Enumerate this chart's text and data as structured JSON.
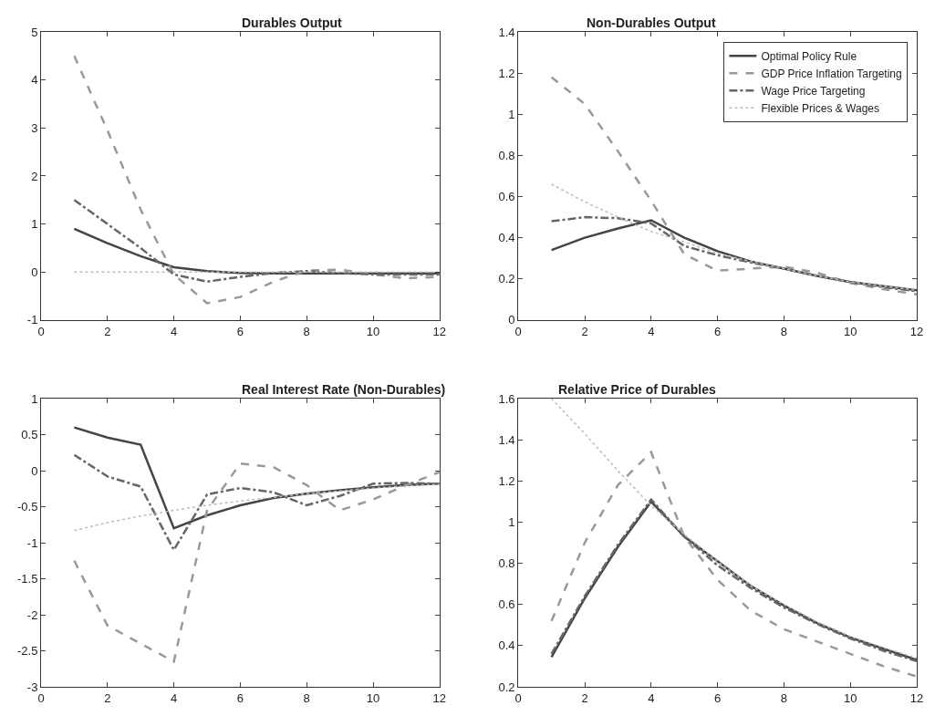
{
  "chart_data": [
    {
      "type": "line",
      "title": "Durables Output",
      "x": [
        1,
        2,
        3,
        4,
        5,
        6,
        7,
        8,
        9,
        10,
        11,
        12
      ],
      "xlim": [
        0,
        12
      ],
      "xticks": [
        0,
        2,
        4,
        6,
        8,
        10,
        12
      ],
      "ylim": [
        -1,
        5
      ],
      "yticks": [
        -1,
        0,
        1,
        2,
        3,
        4,
        5
      ],
      "grid": false,
      "legend": false,
      "marker": "none",
      "series": [
        {
          "color": "#444444",
          "line_style": "solid",
          "values": [
            0.9,
            0.6,
            0.33,
            0.1,
            0.02,
            -0.02,
            -0.03,
            -0.03,
            -0.03,
            -0.03,
            -0.03,
            -0.03
          ]
        },
        {
          "color": "#999999",
          "line_style": "dashed",
          "values": [
            4.5,
            2.95,
            1.3,
            -0.05,
            -0.65,
            -0.52,
            -0.2,
            0.03,
            0.05,
            -0.05,
            -0.13,
            -0.1
          ]
        },
        {
          "color": "#666666",
          "line_style": "dashdot",
          "values": [
            1.5,
            1.0,
            0.5,
            -0.05,
            -0.2,
            -0.1,
            -0.02,
            0.02,
            -0.02,
            -0.05,
            -0.05,
            -0.05
          ]
        },
        {
          "color": "#bbbbbb",
          "line_style": "dotted",
          "values": [
            0,
            0,
            0,
            0,
            0,
            0,
            0,
            0,
            0,
            0,
            0,
            0
          ]
        }
      ]
    },
    {
      "type": "line",
      "title": "Non-Durables Output",
      "x": [
        1,
        2,
        3,
        4,
        5,
        6,
        7,
        8,
        9,
        10,
        11,
        12
      ],
      "xlim": [
        0,
        12
      ],
      "xticks": [
        0,
        2,
        4,
        6,
        8,
        10,
        12
      ],
      "ylim": [
        0,
        1.4
      ],
      "yticks": [
        0,
        0.2,
        0.4,
        0.6,
        0.8,
        1,
        1.2,
        1.4
      ],
      "grid": false,
      "legend": "top right",
      "marker": "none",
      "series": [
        {
          "name": "Optimal Policy Rule",
          "color": "#444444",
          "line_style": "solid",
          "values": [
            0.34,
            0.4,
            0.445,
            0.485,
            0.4,
            0.335,
            0.285,
            0.25,
            0.215,
            0.185,
            0.165,
            0.145
          ]
        },
        {
          "name": "GDP Price Inflation Targeting",
          "color": "#999999",
          "line_style": "dashed",
          "values": [
            1.18,
            1.05,
            0.82,
            0.58,
            0.32,
            0.24,
            0.25,
            0.26,
            0.23,
            0.18,
            0.15,
            0.125
          ]
        },
        {
          "name": "Wage Price Targeting",
          "color": "#666666",
          "line_style": "dashdot",
          "values": [
            0.48,
            0.5,
            0.495,
            0.47,
            0.36,
            0.315,
            0.28,
            0.25,
            0.215,
            0.185,
            0.16,
            0.14
          ]
        },
        {
          "name": "Flexible Prices & Wages",
          "color": "#bbbbbb",
          "line_style": "dotted",
          "values": [
            0.66,
            0.575,
            0.5,
            0.43,
            0.38,
            0.325,
            0.285,
            0.25,
            0.215,
            0.185,
            0.165,
            0.145
          ]
        }
      ]
    },
    {
      "type": "line",
      "title": "Real Interest Rate (Non-Durables)",
      "x": [
        1,
        2,
        3,
        4,
        5,
        6,
        7,
        8,
        9,
        10,
        11,
        12
      ],
      "xlim": [
        0,
        12
      ],
      "xticks": [
        0,
        2,
        4,
        6,
        8,
        10,
        12
      ],
      "ylim": [
        -3,
        1
      ],
      "yticks": [
        -3,
        -2.5,
        -2,
        -1.5,
        -1,
        -0.5,
        0,
        0.5,
        1
      ],
      "grid": false,
      "legend": false,
      "marker": "none",
      "series": [
        {
          "color": "#444444",
          "line_style": "solid",
          "values": [
            0.6,
            0.46,
            0.36,
            -0.8,
            -0.62,
            -0.48,
            -0.38,
            -0.32,
            -0.27,
            -0.23,
            -0.2,
            -0.18
          ]
        },
        {
          "color": "#999999",
          "line_style": "dashed",
          "values": [
            -1.25,
            -2.15,
            -2.4,
            -2.65,
            -0.55,
            0.1,
            0.05,
            -0.2,
            -0.55,
            -0.4,
            -0.2,
            -0.02
          ]
        },
        {
          "color": "#666666",
          "line_style": "dashdot",
          "values": [
            0.22,
            -0.08,
            -0.22,
            -1.1,
            -0.33,
            -0.24,
            -0.3,
            -0.48,
            -0.35,
            -0.18,
            -0.17,
            -0.18
          ]
        },
        {
          "color": "#bbbbbb",
          "line_style": "dotted",
          "values": [
            -0.83,
            -0.72,
            -0.63,
            -0.55,
            -0.48,
            -0.42,
            -0.37,
            -0.32,
            -0.28,
            -0.24,
            -0.21,
            -0.19
          ]
        }
      ]
    },
    {
      "type": "line",
      "title": "Relative Price of Durables",
      "x": [
        1,
        2,
        3,
        4,
        5,
        6,
        7,
        8,
        9,
        10,
        11,
        12
      ],
      "xlim": [
        0,
        12
      ],
      "xticks": [
        0,
        2,
        4,
        6,
        8,
        10,
        12
      ],
      "ylim": [
        0.2,
        1.6
      ],
      "yticks": [
        0.2,
        0.4,
        0.6,
        0.8,
        1,
        1.2,
        1.4,
        1.6
      ],
      "grid": false,
      "legend": false,
      "marker": "none",
      "series": [
        {
          "color": "#444444",
          "line_style": "solid",
          "values": [
            0.345,
            0.63,
            0.88,
            1.1,
            0.93,
            0.81,
            0.69,
            0.595,
            0.51,
            0.44,
            0.385,
            0.33
          ]
        },
        {
          "color": "#999999",
          "line_style": "dashed",
          "values": [
            0.52,
            0.9,
            1.18,
            1.34,
            0.93,
            0.72,
            0.57,
            0.48,
            0.42,
            0.36,
            0.3,
            0.25
          ]
        },
        {
          "color": "#666666",
          "line_style": "dashdot",
          "values": [
            0.36,
            0.64,
            0.89,
            1.11,
            0.93,
            0.79,
            0.68,
            0.585,
            0.505,
            0.435,
            0.375,
            0.325
          ]
        },
        {
          "color": "#bbbbbb",
          "line_style": "dotted",
          "values": [
            1.6,
            1.43,
            1.25,
            1.08,
            0.94,
            0.81,
            0.69,
            0.6,
            0.515,
            0.445,
            0.39,
            0.34
          ]
        }
      ]
    }
  ]
}
